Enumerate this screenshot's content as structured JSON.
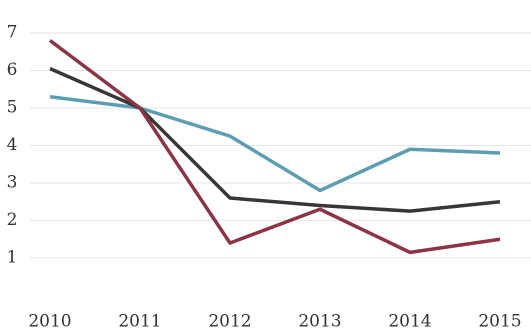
{
  "chart_data": {
    "type": "line",
    "categories": [
      "2010",
      "2011",
      "2012",
      "2013",
      "2014",
      "2015"
    ],
    "series": [
      {
        "color": "#5d9db3",
        "values": [
          5.3,
          5.0,
          4.25,
          2.8,
          3.9,
          3.8
        ]
      },
      {
        "color": "#3b3636",
        "values": [
          6.05,
          5.0,
          2.6,
          2.4,
          2.25,
          2.5
        ]
      },
      {
        "color": "#8c3445",
        "values": [
          6.8,
          5.0,
          1.4,
          2.3,
          1.15,
          1.5
        ]
      }
    ],
    "ylim": [
      0.6,
      7.4
    ],
    "yticks": [
      1,
      2,
      3,
      4,
      5,
      6,
      7
    ],
    "grid": true
  }
}
